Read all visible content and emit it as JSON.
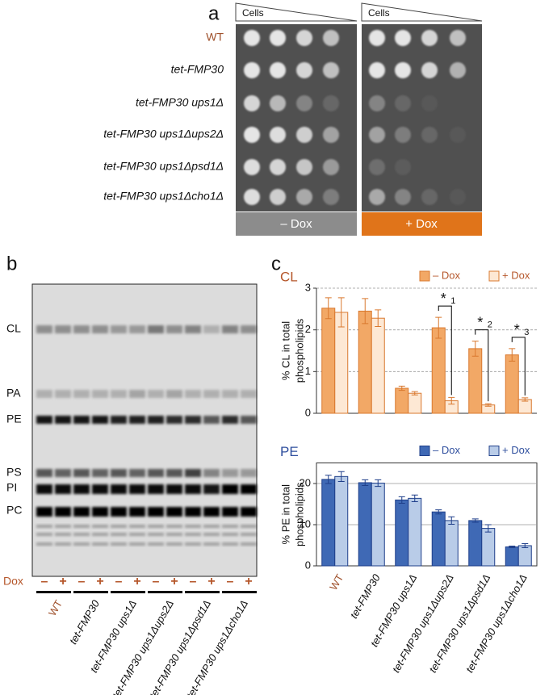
{
  "panel_a": {
    "label": "a",
    "headers": [
      "Cells",
      "Cells"
    ],
    "strains": [
      "WT",
      "tet-FMP30",
      "tet-FMP30 ups1Δ",
      "tet-FMP30 ups1Δups2Δ",
      "tet-FMP30 ups1Δpsd1Δ",
      "tet-FMP30 ups1Δcho1Δ"
    ],
    "conditions": [
      "– Dox",
      "+ Dox"
    ]
  },
  "panel_b": {
    "label": "b",
    "bands": [
      "CL",
      "PA",
      "PE",
      "PS",
      "PI",
      "PC"
    ],
    "dox_label": "Dox",
    "lane_signs": [
      "–",
      "+",
      "–",
      "+",
      "–",
      "+",
      "–",
      "+",
      "–",
      "+",
      "–",
      "+"
    ],
    "strains": [
      "WT",
      "tet-FMP30",
      "tet-FMP30 ups1Δ",
      "tet-FMP30 ups1Δups2Δ",
      "tet-FMP30 ups1Δpsd1Δ",
      "tet-FMP30 ups1Δcho1Δ"
    ]
  },
  "panel_c": {
    "label": "c"
  },
  "chart_data": [
    {
      "type": "bar",
      "title": "CL",
      "title_color": "#b5562a",
      "y_label": [
        "% CL in total",
        "phospholipids"
      ],
      "ylim": [
        0,
        3
      ],
      "yticks": [
        0,
        1,
        2,
        3
      ],
      "grid": true,
      "series": [
        {
          "name": "– Dox",
          "color": "#f2a866",
          "edge": "#d9782e",
          "values": [
            2.52,
            2.45,
            0.6,
            2.05,
            1.55,
            1.4
          ],
          "errors": [
            0.25,
            0.3,
            0.05,
            0.25,
            0.18,
            0.15
          ]
        },
        {
          "name": "+ Dox",
          "color": "#fde8d4",
          "edge": "#d9782e",
          "values": [
            2.42,
            2.28,
            0.48,
            0.3,
            0.2,
            0.33
          ],
          "errors": [
            0.35,
            0.2,
            0.04,
            0.08,
            0.03,
            0.04
          ]
        }
      ],
      "annotations": [
        {
          "symbol": "*",
          "label": "1"
        },
        {
          "symbol": "*",
          "label": "2"
        },
        {
          "symbol": "*",
          "label": "3"
        }
      ]
    },
    {
      "type": "bar",
      "title": "PE",
      "title_color": "#2f4f9e",
      "y_label": [
        "% PE in total",
        "phospholipids"
      ],
      "ylim": [
        0,
        25
      ],
      "yticks": [
        0,
        10,
        20
      ],
      "grid": true,
      "categories": [
        "WT",
        "tet-FMP30",
        "tet-FMP30 ups1Δ",
        "tet-FMP30 ups1Δups2Δ",
        "tet-FMP30 ups1Δpsd1Δ",
        "tet-FMP30 ups1Δcho1Δ"
      ],
      "series": [
        {
          "name": "– Dox",
          "color": "#3f69b5",
          "edge": "#1f3f8a",
          "values": [
            21,
            20.2,
            16,
            13.1,
            11,
            4.6
          ],
          "errors": [
            1,
            0.7,
            0.8,
            0.5,
            0.4,
            0.2
          ]
        },
        {
          "name": "+ Dox",
          "color": "#b9cce8",
          "edge": "#1f3f8a",
          "values": [
            21.7,
            20.1,
            16.4,
            11,
            9.1,
            4.9
          ],
          "errors": [
            1.2,
            0.8,
            0.8,
            0.9,
            0.9,
            0.5
          ]
        }
      ]
    }
  ]
}
